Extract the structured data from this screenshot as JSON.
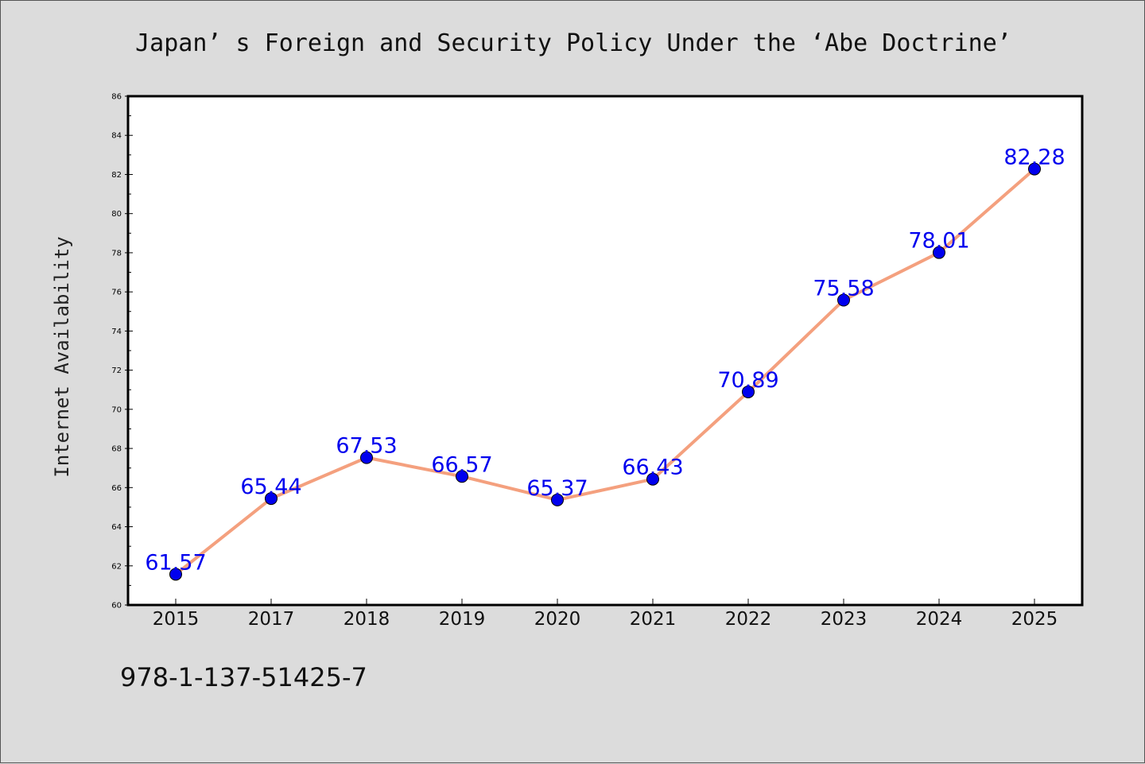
{
  "chart_data": {
    "type": "line",
    "title": "Japan’ s Foreign and Security Policy Under the ‘Abe Doctrine’",
    "xlabel": "",
    "ylabel": "Internet Availability",
    "categories": [
      "2015",
      "2017",
      "2018",
      "2019",
      "2020",
      "2021",
      "2022",
      "2023",
      "2024",
      "2025"
    ],
    "series": [
      {
        "values": [
          61.57,
          65.44,
          67.53,
          66.57,
          65.37,
          66.43,
          70.89,
          75.58,
          78.01,
          82.28
        ]
      }
    ],
    "data_labels": [
      "61.57",
      "65.44",
      "67.53",
      "66.57",
      "65.37",
      "66.43",
      "70.89",
      "75.58",
      "78.01",
      "82.28"
    ],
    "ylim": [
      60,
      86
    ],
    "yticks": [
      "60",
      "62",
      "64",
      "66",
      "68",
      "70",
      "72",
      "74",
      "76",
      "78",
      "80",
      "82",
      "84",
      "86"
    ],
    "grid": false,
    "line_color": "#f4a07e",
    "marker_color": "#0000ee",
    "label_color": "#0000ee",
    "background": "#dcdcdc",
    "plot_background": "#ffffff"
  },
  "footer": {
    "isbn": "978-1-137-51425-7"
  }
}
